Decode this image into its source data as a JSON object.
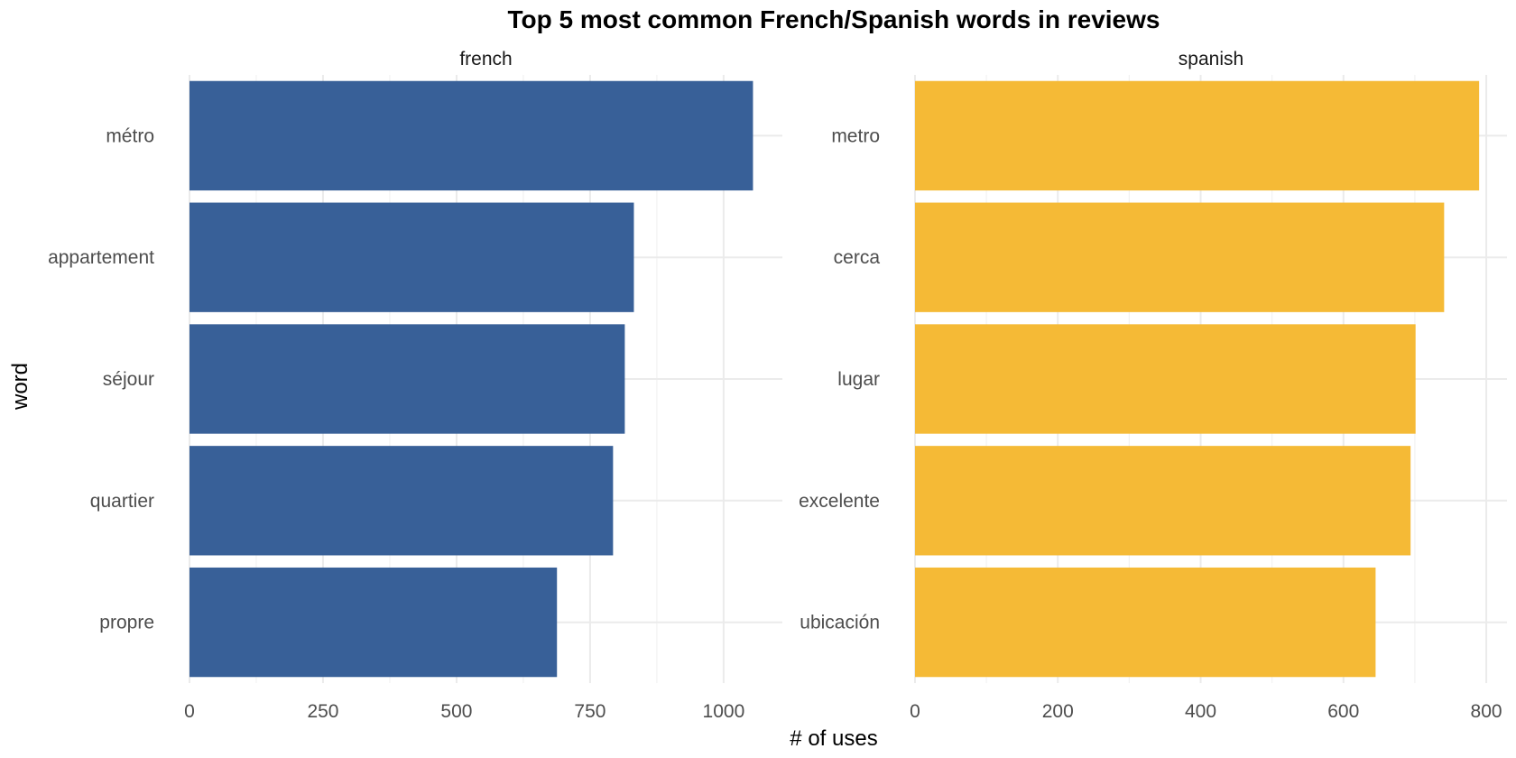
{
  "chart_data": {
    "type": "bar",
    "orientation": "horizontal",
    "title": "Top 5 most common French/Spanish words in reviews",
    "xlabel": "# of uses",
    "ylabel": "word",
    "grid": true,
    "legend": "none",
    "panels": [
      {
        "name": "french",
        "color": "#386098",
        "categories": [
          "métro",
          "appartement",
          "séjour",
          "quartier",
          "propre"
        ],
        "values": [
          1055,
          832,
          815,
          793,
          688
        ],
        "xlim": [
          0,
          1110
        ],
        "xticks": [
          0,
          250,
          500,
          750,
          1000
        ],
        "xtick_labels": [
          "0",
          "250",
          "500",
          "750",
          "1000"
        ]
      },
      {
        "name": "spanish",
        "color": "#F5BA36",
        "categories": [
          "metro",
          "cerca",
          "lugar",
          "excelente",
          "ubicación"
        ],
        "values": [
          790,
          741,
          701,
          694,
          645
        ],
        "xlim": [
          0,
          829
        ],
        "xticks": [
          0,
          200,
          400,
          600,
          800
        ],
        "xtick_labels": [
          "0",
          "200",
          "400",
          "600",
          "800"
        ]
      }
    ]
  }
}
